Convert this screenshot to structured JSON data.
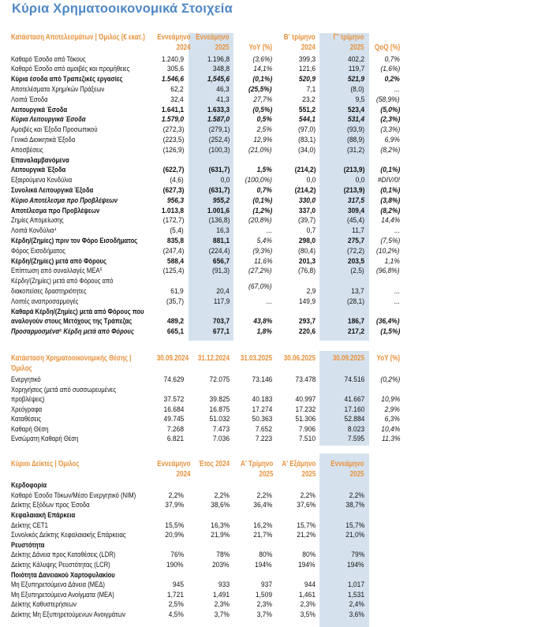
{
  "title": "Κύρια Χρηματοοικονομικά Στοιχεία",
  "colors": {
    "title": "#4F88C6",
    "header": "#E8923C",
    "shade": "#D5E2EE"
  },
  "tables": [
    {
      "header": {
        "label": "Κατάσταση Αποτελεσμάτων | Όμιλος            (€ εκατ.)",
        "cols": [
          "Εννεάμηνο\n2024",
          "Εννεάμηνο\n2025",
          "\nYoY (%)",
          "Β' τρίμηνο\n2024",
          "Γ' τρίμηνο\n2025",
          "\nQoQ (%)"
        ]
      },
      "italic_cols": [
        2,
        5
      ],
      "rows": [
        {
          "label": "Καθαρό Έσοδο από Τόκους",
          "values": [
            "1.240,9",
            "1.196,8",
            "(3,6%)",
            "399,3",
            "402,2",
            "0,7%"
          ],
          "style": "n"
        },
        {
          "label": "Καθαρό Έσοδο από αμοιβές και προμήθειες",
          "values": [
            "305,6",
            "348,8",
            "14,1%",
            "121,6",
            "119,7",
            "(1,6%)"
          ],
          "style": "n"
        },
        {
          "label": "Κύρια έσοδα από Τραπεζικές εργασίες",
          "values": [
            "1.546,6",
            "1,545,6",
            "(0,1%)",
            "520,9",
            "521,9",
            "0,2%"
          ],
          "style": "b",
          "num_italic": true
        },
        {
          "label": "Αποτελέσματα Χρημ/κών Πράξεων",
          "values": [
            "62,2",
            "46,3",
            "(25,5%)",
            "7,1",
            "(8,0)",
            "..."
          ],
          "style": "n",
          "bold_cols": [
            2
          ]
        },
        {
          "label": "Λοιπά Έσοδα",
          "values": [
            "32,4",
            "41,3",
            "27,7%",
            "23,2",
            "9,5",
            "(58,9%)"
          ],
          "style": "n"
        },
        {
          "label": "Λειτουργικά Έσοδα",
          "values": [
            "1.641,1",
            "1.633,3",
            "(0,5%)",
            "551,2",
            "523,4",
            "(5,0%)"
          ],
          "style": "b"
        },
        {
          "label": "Κύρια Λειτουργικά Έσοδα",
          "values": [
            "1.579,0",
            "1.587,0",
            "0,5%",
            "544,1",
            "531,4",
            "(2,3%)"
          ],
          "style": "bi"
        },
        {
          "label": "Αμοιβές και Έξοδα Προσωπικού",
          "values": [
            "(272,3)",
            "(279,1)",
            "2,5%",
            "(97,0)",
            "(93,9)",
            "(3,3%)"
          ],
          "style": "n"
        },
        {
          "label": "Γενικά Διοικητικά Έξοδα",
          "values": [
            "(223,5)",
            "(252,4)",
            "12,9%",
            "(83,1)",
            "(88,9)",
            "6,9%"
          ],
          "style": "n"
        },
        {
          "label": "Αποσβέσεις",
          "values": [
            "(126,9)",
            "(100,3)",
            "(21,0%)",
            "(34,0)",
            "(31,2)",
            "(8,2%)"
          ],
          "style": "n"
        },
        {
          "label": "Επαναλαμβανόμενα\nΛειτουργικά Έξοδα",
          "values": [
            "(622,7)",
            "(631,7)",
            "1,5%",
            "(214,2)",
            "(213,9)",
            "(0,1%)"
          ],
          "style": "b",
          "lines": 2
        },
        {
          "label": "Εξαιρούμενα Κονδύλια",
          "values": [
            "(4,6)",
            "0,0",
            "(100,0%)",
            "0,0",
            "0,0",
            "#DIV/0!"
          ],
          "style": "n"
        },
        {
          "label": "Συνολικά Λειτουργικά Έξοδα",
          "values": [
            "(627,3)",
            "(631,7)",
            "0,7%",
            "(214,2)",
            "(213,9)",
            "(0,1%)"
          ],
          "style": "b"
        },
        {
          "label": "Κύριο Αποτέλεσμα προ Προβλέψεων",
          "values": [
            "956,3",
            "955,2",
            "(0,1%)",
            "330,0",
            "317,5",
            "(3,8%)"
          ],
          "style": "bi"
        },
        {
          "label": "Αποτέλεσμα προ Προβλέψεων",
          "values": [
            "1.013,8",
            "1.001,6",
            "(1,2%)",
            "337,0",
            "309,4",
            "(8,2%)"
          ],
          "style": "b"
        },
        {
          "label": "Ζημίες Απομείωσης",
          "values": [
            "(172,7)",
            "(136,8)",
            "(20,8%)",
            "(39,7)",
            "(45,4)",
            "14,4%"
          ],
          "style": "n"
        },
        {
          "label": "Λοιπά Κονδύλια⁴",
          "values": [
            "(5,4)",
            "16,3",
            "...",
            "0,7",
            "11,7",
            "..."
          ],
          "style": "n"
        },
        {
          "label": "Κέρδη/(Ζημίες) πριν τον Φόρο Εισοδήματος",
          "values": [
            "835,8",
            "881,1",
            "5,4%",
            "298,0",
            "275,7",
            "(7,5%)"
          ],
          "style": "b",
          "plain_cols": [
            2,
            5
          ]
        },
        {
          "label": "Φόρος Εισοδήματος",
          "values": [
            "(247,4)",
            "(224,4)",
            "(9,3%)",
            "(80,4)",
            "(72,2)",
            "(10,2%)"
          ],
          "style": "n"
        },
        {
          "label": "Κέρδη/(Ζημίες) μετά από Φόρους",
          "values": [
            "588,4",
            "656,7",
            "11,6%",
            "201,3",
            "203,5",
            "1,1%"
          ],
          "style": "b",
          "plain_cols": [
            2,
            5
          ]
        },
        {
          "label": "Επίπτωση από συναλλαγές ΜΕΑ⁵",
          "values": [
            "(125,4)",
            "(91,3)",
            "(27,2%)",
            "(76,8)",
            "(2,5)",
            "(96,8%)"
          ],
          "style": "n"
        },
        {
          "label": "Κέρδη/(Ζημίες) μετά από Φόρους από\nδιακοπείσες δραστηριότητες",
          "values": [
            "61,9",
            "20,4",
            "(67,0%)",
            "2,9",
            "13,7",
            "..."
          ],
          "style": "n",
          "lines": 2
        },
        {
          "label": "Λοιπές αναπροσαρμογές",
          "values": [
            "(35,7)",
            "117,9",
            "...",
            "149,9",
            "(28,1)",
            "..."
          ],
          "style": "n"
        },
        {
          "label": "Καθαρά Κέρδη/(Ζημίες) μετά από Φόρους που\nαναλογούν στους Μετόχους της Τράπεζας",
          "values": [
            "489,2",
            "703,7",
            "43,8%",
            "293,7",
            "186,7",
            "(36,4%)"
          ],
          "style": "b",
          "lines": 2
        },
        {
          "label": "Προσαρμοσμένα⁶ Κέρδη μετά από Φόρους",
          "values": [
            "665,1",
            "677,1",
            "1,8%",
            "220,6",
            "217,2",
            "(1,5%)"
          ],
          "style": "bi",
          "num_upright": true
        }
      ]
    },
    {
      "header": {
        "label": "Κατάσταση Χρηματοοικονομικής Θέσης | Όμιλος",
        "cols": [
          "30.09.2024",
          "31.12.2024",
          "31.03.2025",
          "30.06.2025",
          "30.09.2025",
          "YoY (%)"
        ]
      },
      "italic_cols": [
        5
      ],
      "rows": [
        {
          "label": "Ενεργητικό",
          "values": [
            "74.629",
            "72.075",
            "73.146",
            "73.478",
            "74.516",
            "(0,2%)"
          ],
          "style": "n"
        },
        {
          "label": "Χορηγήσεις (μετά από συσσωρευμένες\nπροβλέψεις)",
          "values": [
            "37.572",
            "39.825",
            "40.183",
            "40.997",
            "41.667",
            "10,9%"
          ],
          "style": "n",
          "lines": 2
        },
        {
          "label": "Χρεόγραφα",
          "values": [
            "16.684",
            "16.875",
            "17.274",
            "17.232",
            "17.160",
            "2,9%"
          ],
          "style": "n"
        },
        {
          "label": "Καταθέσεις",
          "values": [
            "49.745",
            "51.032",
            "50.363",
            "51.306",
            "52.884",
            "6,3%"
          ],
          "style": "n"
        },
        {
          "label": "Καθαρή Θέση",
          "values": [
            "7.268",
            "7.473",
            "7.652",
            "7.906",
            "8.023",
            "10,4%"
          ],
          "style": "n"
        },
        {
          "label": "Ενσώματη Καθαρή Θέση",
          "values": [
            "6.821",
            "7.036",
            "7.223",
            "7.510",
            "7.595",
            "11,3%"
          ],
          "style": "n"
        }
      ]
    },
    {
      "header": {
        "label": "Κύριοι Δείκτες | Όμιλος",
        "cols": [
          "Εννεάμηνο\n2024",
          "Έτος 2024\n",
          "Α' Τρίμηνο\n2025",
          "Α' Εξάμηνο\n2025",
          "Εννεάμηνο\n2025",
          ""
        ]
      },
      "italic_cols": [],
      "rows": [
        {
          "label": "Κερδοφορία",
          "values": [],
          "style": "sec"
        },
        {
          "label": "Καθαρό Έσοδο Τόκων/Μέσο Ενεργητικό (NIM)",
          "values": [
            "2,2%",
            "2,2%",
            "2,2%",
            "2,2%",
            "2,2%"
          ],
          "style": "n"
        },
        {
          "label": "Δείκτης Εξόδων προς Έσοδα",
          "values": [
            "37,9%",
            "38,6%",
            "36,4%",
            "37,6%",
            "38,7%"
          ],
          "style": "n"
        },
        {
          "label": "Κεφαλαιακή Επάρκεια",
          "values": [],
          "style": "sec"
        },
        {
          "label": "Δείκτης CET1",
          "values": [
            "15,5%",
            "16,3%",
            "16,2%",
            "15,7%",
            "15,7%"
          ],
          "style": "n"
        },
        {
          "label": "Συνολικός Δείκτης Κεφαλαιακής Επάρκειας",
          "values": [
            "20,9%",
            "21,9%",
            "21,7%",
            "21,2%",
            "21,0%"
          ],
          "style": "n"
        },
        {
          "label": "Ρευστότητα",
          "values": [],
          "style": "sec"
        },
        {
          "label": "Δείκτης Δάνεια προς Καταθέσεις (LDR)",
          "values": [
            "76%",
            "78%",
            "80%",
            "80%",
            "79%"
          ],
          "style": "n"
        },
        {
          "label": "Δείκτης Κάλυψης Ρευστότητας (LCR)",
          "values": [
            "190%",
            "203%",
            "194%",
            "194%",
            "194%"
          ],
          "style": "n"
        },
        {
          "label": "Ποιότητα Δανειακού Χαρτοφυλακίου",
          "values": [],
          "style": "sec"
        },
        {
          "label": "Μη Εξυπηρετούμενα Δάνεια (ΜΕΔ)",
          "values": [
            "945",
            "933",
            "937",
            "944",
            "1,017"
          ],
          "style": "n"
        },
        {
          "label": "Μη Εξυπηρετούμενα Ανοίγματα (ΜΕΑ)",
          "values": [
            "1,721",
            "1,491",
            "1,509",
            "1,461",
            "1,531"
          ],
          "style": "n"
        },
        {
          "label": "Δείκτης Καθυστερήσεων",
          "values": [
            "2,5%",
            "2,3%",
            "2,3%",
            "2,3%",
            "2,4%"
          ],
          "style": "n"
        },
        {
          "label": "Δείκτης Μη Εξυπηρετούμενων Ανοιγμάτων",
          "values": [
            "4,5%",
            "3,7%",
            "3,7%",
            "3,5%",
            "3,6%"
          ],
          "style": "n"
        }
      ]
    }
  ]
}
